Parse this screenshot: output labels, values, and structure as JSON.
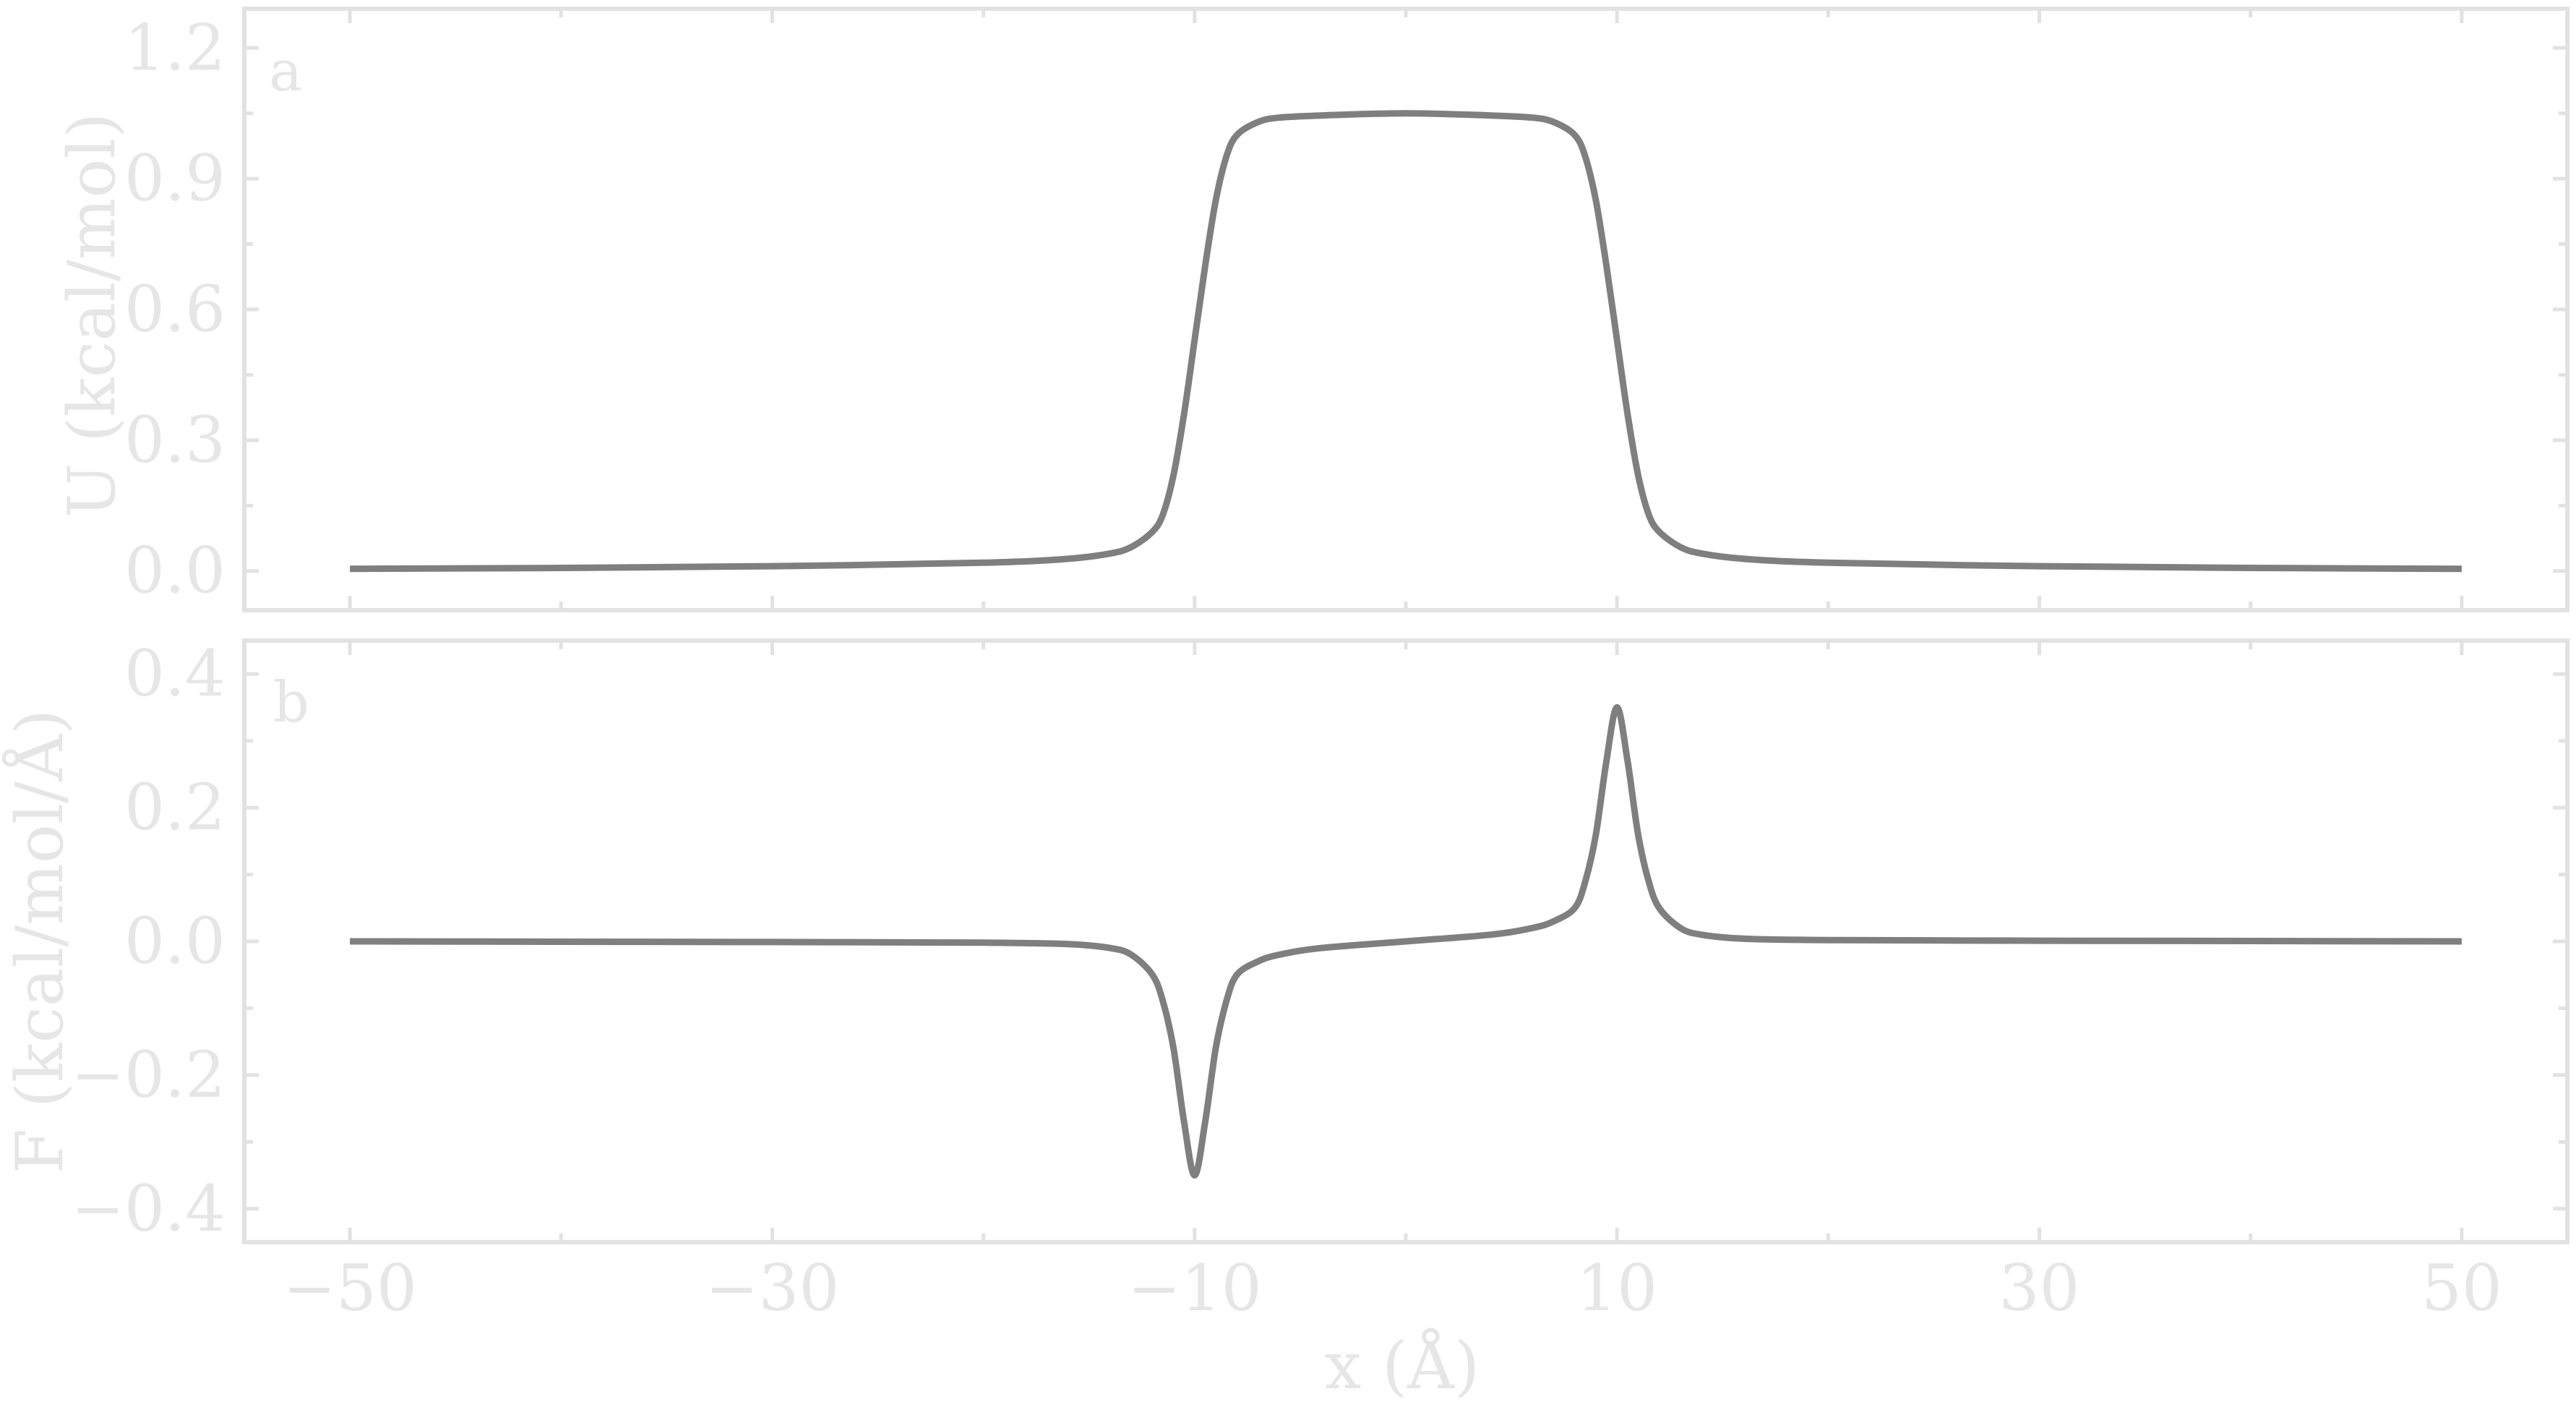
{
  "chart_data": [
    {
      "type": "line",
      "panel_label": "a",
      "ylabel": "U (kcal/mol)",
      "xlim": [
        -55,
        55
      ],
      "ylim": [
        -0.09,
        1.29
      ],
      "yticks": [
        0.0,
        0.3,
        0.6,
        0.9,
        1.2
      ],
      "ytick_labels": [
        "0.0",
        "0.3",
        "0.6",
        "0.9",
        "1.2"
      ],
      "grid": false,
      "line_color": "#7f7f7f",
      "x": [
        -50,
        -40,
        -30,
        -20,
        -16,
        -14,
        -13,
        -12,
        -11.5,
        -11,
        -10.5,
        -10,
        -9.5,
        -9,
        -8.5,
        -8,
        -7,
        -6,
        -4,
        0,
        4,
        6,
        7,
        8,
        8.5,
        9,
        9.5,
        10,
        10.5,
        11,
        11.5,
        12,
        13,
        14,
        16,
        20,
        30,
        40,
        50
      ],
      "y": [
        0.005,
        0.007,
        0.011,
        0.019,
        0.028,
        0.04,
        0.055,
        0.09,
        0.13,
        0.22,
        0.36,
        0.53,
        0.7,
        0.85,
        0.95,
        1.0,
        1.03,
        1.04,
        1.045,
        1.05,
        1.045,
        1.04,
        1.03,
        1.0,
        0.95,
        0.85,
        0.7,
        0.53,
        0.36,
        0.22,
        0.13,
        0.09,
        0.055,
        0.04,
        0.028,
        0.019,
        0.011,
        0.007,
        0.005
      ]
    },
    {
      "type": "line",
      "panel_label": "b",
      "xlabel": "x (Å)",
      "ylabel": "F (kcal/mol/Å)",
      "xlim": [
        -55,
        55
      ],
      "ylim": [
        -0.45,
        0.45
      ],
      "xticks": [
        -50,
        -30,
        -10,
        10,
        30,
        50
      ],
      "xtick_labels": [
        "−50",
        "−30",
        "−10",
        "10",
        "30",
        "50"
      ],
      "yticks": [
        -0.4,
        -0.2,
        0.0,
        0.2,
        0.4
      ],
      "ytick_labels": [
        "−0.4",
        "−0.2",
        "0.0",
        "0.2",
        "0.4"
      ],
      "grid": false,
      "line_color": "#7f7f7f",
      "x": [
        -50,
        -40,
        -30,
        -20,
        -16,
        -14,
        -13,
        -12,
        -11.5,
        -11,
        -10.5,
        -10,
        -9.5,
        -9,
        -8.5,
        -8,
        -7,
        -6,
        -4,
        0,
        4,
        6,
        7,
        8,
        8.5,
        9,
        9.5,
        10,
        10.5,
        11,
        11.5,
        12,
        13,
        14,
        16,
        20,
        30,
        40,
        50
      ],
      "y": [
        0.0,
        -0.0005,
        -0.001,
        -0.002,
        -0.004,
        -0.01,
        -0.02,
        -0.05,
        -0.09,
        -0.16,
        -0.27,
        -0.35,
        -0.27,
        -0.16,
        -0.09,
        -0.05,
        -0.03,
        -0.02,
        -0.01,
        0.0,
        0.01,
        0.02,
        0.03,
        0.05,
        0.09,
        0.16,
        0.27,
        0.35,
        0.27,
        0.16,
        0.09,
        0.05,
        0.02,
        0.01,
        0.004,
        0.002,
        0.001,
        0.0005,
        0.0
      ]
    }
  ]
}
